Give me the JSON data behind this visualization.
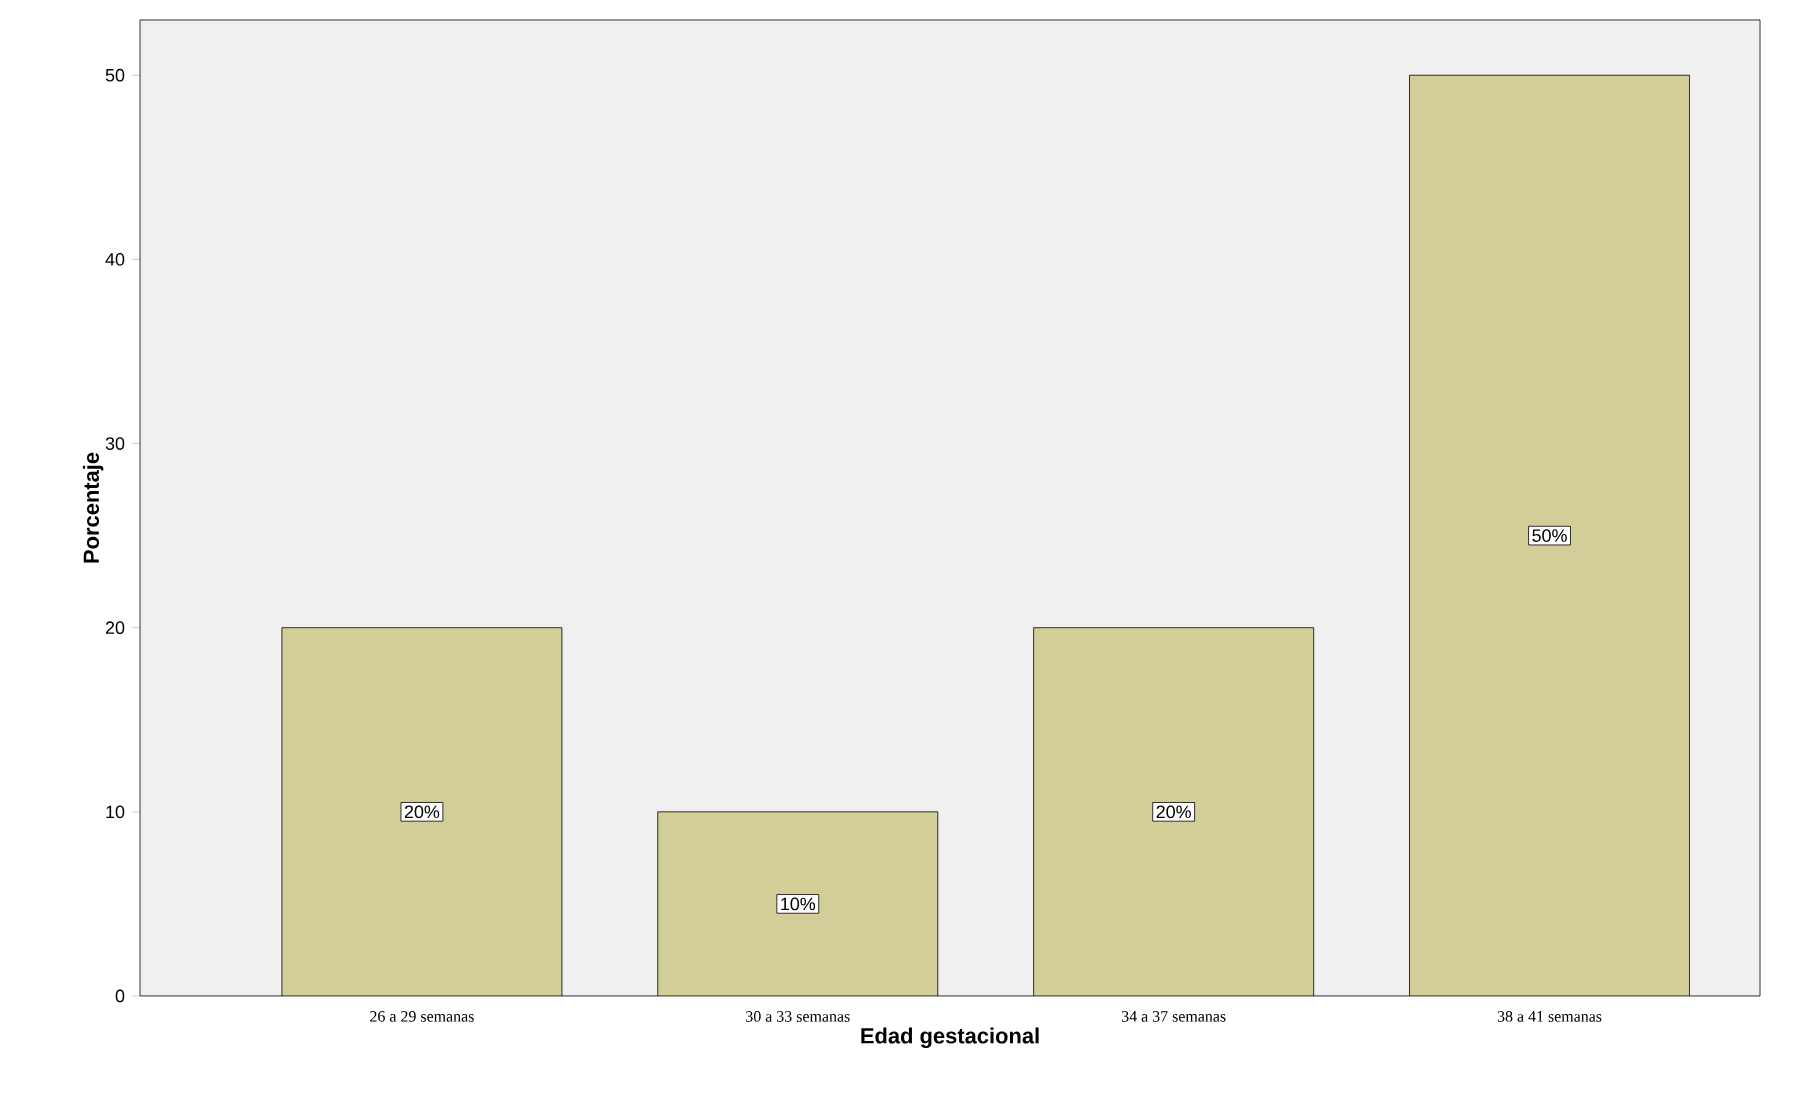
{
  "chart_data": {
    "type": "bar",
    "xlabel": "Edad gestacional",
    "ylabel": "Porcentaje",
    "categories": [
      "26 a 29 semanas",
      "30 a 33 semanas",
      "34 a 37 semanas",
      "38 a 41 semanas"
    ],
    "values": [
      20,
      10,
      20,
      50
    ],
    "value_labels": [
      "20%",
      "10%",
      "20%",
      "50%"
    ],
    "color": "#d3ce97",
    "ylim": [
      0,
      53
    ],
    "yticks": [
      0,
      10,
      20,
      30,
      40,
      50
    ]
  }
}
